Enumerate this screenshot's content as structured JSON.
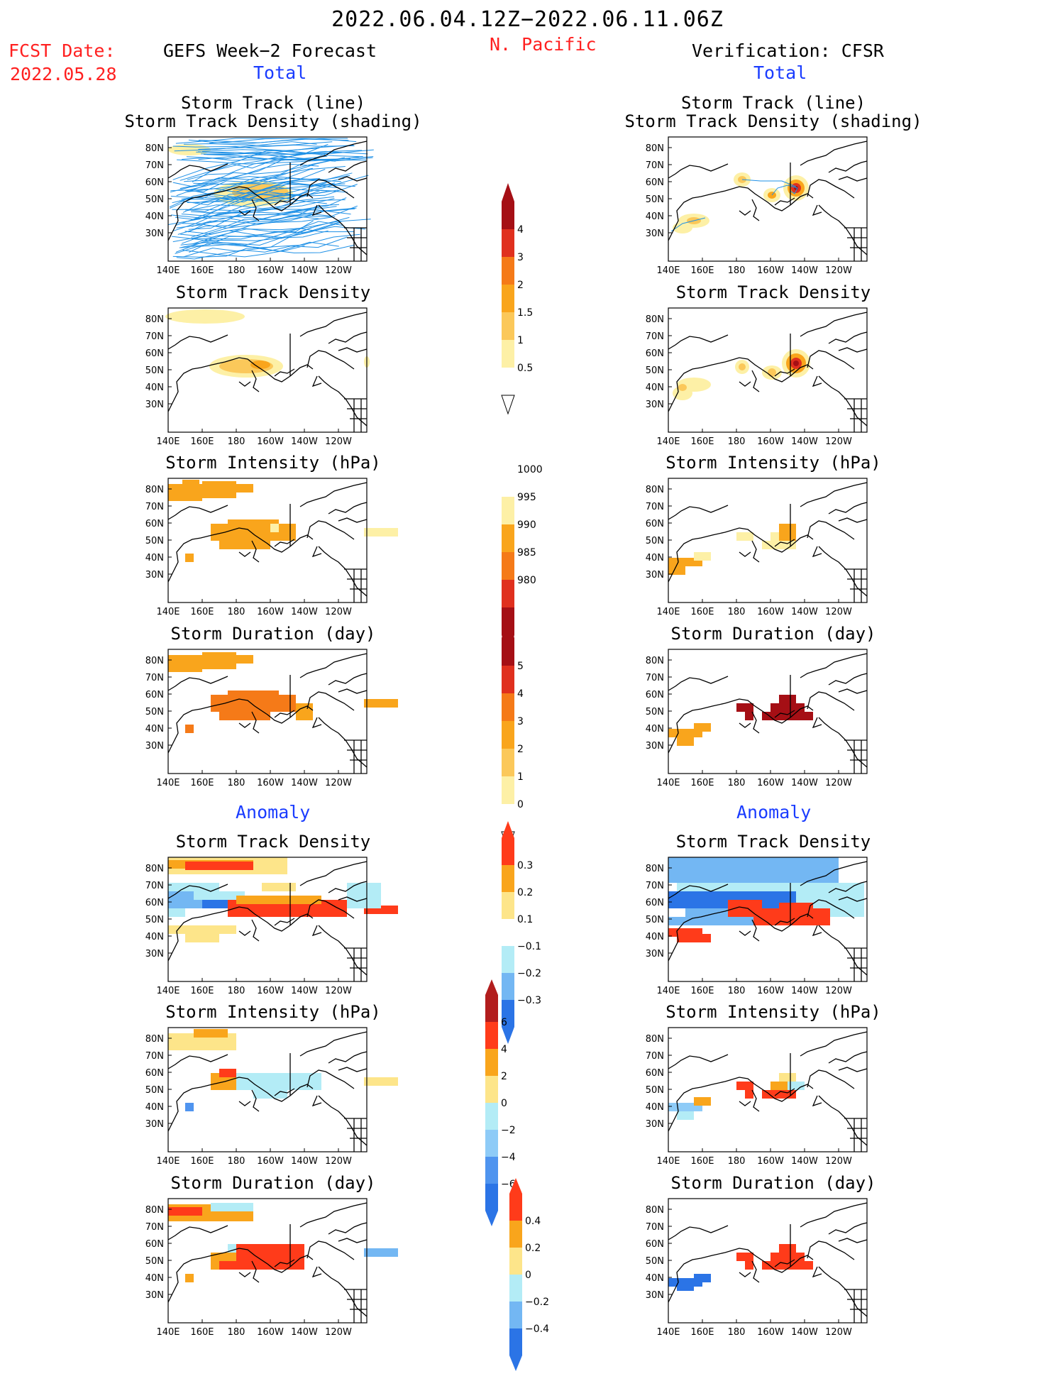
{
  "header": {
    "date_range": "2022.06.04.12Z−2022.06.11.06Z",
    "region": "N. Pacific",
    "fcst_label": "FCST Date:",
    "fcst_date": "2022.05.28",
    "left_title": "GEFS Week−2 Forecast",
    "right_title": "Verification: CFSR",
    "total_label": "Total",
    "anomaly_label": "Anomaly"
  },
  "panel_titles": {
    "track_line": "Storm Track (line)",
    "track_density_shading": "Storm Track Density (shading)",
    "track_density": "Storm Track Density",
    "intensity": "Storm Intensity (hPa)",
    "duration": "Storm Duration (day)"
  },
  "axes": {
    "y_ticks": [
      "80N",
      "70N",
      "60N",
      "50N",
      "40N",
      "30N"
    ],
    "x_ticks": [
      "140E",
      "160E",
      "180",
      "160W",
      "140W",
      "120W"
    ]
  },
  "colorbars": {
    "density": {
      "labels": [
        "4",
        "3",
        "2",
        "1.5",
        "1",
        "0.5"
      ],
      "colors": [
        "#a50f15",
        "#e0301e",
        "#f57a18",
        "#f9a51c",
        "#fbc85a",
        "#fdf0a6",
        "#ffffff"
      ]
    },
    "intensity": {
      "labels": [
        "1000",
        "995",
        "990",
        "985",
        "980"
      ],
      "colors": [
        "#ffffff",
        "#fdf0a6",
        "#f9a51c",
        "#f57a18",
        "#e0301e",
        "#a50f15"
      ]
    },
    "duration": {
      "labels": [
        "5",
        "4",
        "3",
        "2",
        "1",
        "0"
      ],
      "colors": [
        "#a50f15",
        "#e0301e",
        "#f57a18",
        "#f9a51c",
        "#fbc85a",
        "#fdf0a6",
        "#ffffff"
      ]
    },
    "anom_density": {
      "labels": [
        "0.3",
        "0.2",
        "0.1",
        "−0.1",
        "−0.2",
        "−0.3"
      ],
      "colors": [
        "#ff3b1a",
        "#f9a51c",
        "#fde58a",
        "#ffffff",
        "#b3ecf6",
        "#73b7f3",
        "#2b74e6"
      ]
    },
    "anom_intensity": {
      "labels": [
        "6",
        "4",
        "2",
        "0",
        "−2",
        "−4",
        "−6"
      ],
      "colors": [
        "#b21d1d",
        "#ff3b1a",
        "#f9a51c",
        "#fde58a",
        "#b3ecf6",
        "#8ecbf7",
        "#4f94ef",
        "#2b74e6"
      ]
    },
    "anom_duration": {
      "labels": [
        "0.4",
        "0.2",
        "0",
        "−0.2",
        "−0.4"
      ],
      "colors": [
        "#ff3b1a",
        "#f9a51c",
        "#fde58a",
        "#b3ecf6",
        "#73b7f3",
        "#2b74e6"
      ]
    }
  },
  "colors": {
    "track_line": "#1e90e6",
    "coast": "#000000",
    "title_red": "#ff2020",
    "title_blue": "#1a3cff"
  }
}
